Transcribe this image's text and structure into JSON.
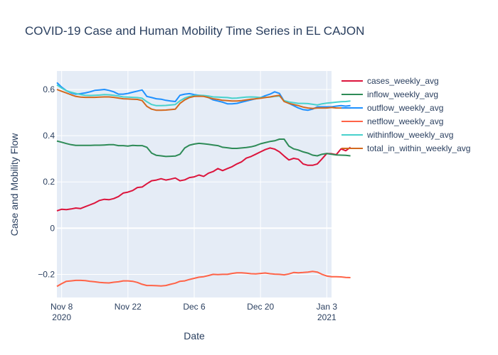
{
  "chart_data": {
    "type": "line",
    "title": "COVID-19 Case and Human Mobility Time Series in EL CAJON",
    "xlabel": "Date",
    "ylabel": "Case and Mobility Flow",
    "x_start": "2020-11-07",
    "xlim": [
      "2020-11-07",
      "2021-01-04"
    ],
    "ylim": [
      -0.3,
      0.68
    ],
    "x_ticks": [
      {
        "date": "2020-11-08",
        "label": "Nov 8",
        "sublabel": "2020"
      },
      {
        "date": "2020-11-22",
        "label": "Nov 22",
        "sublabel": ""
      },
      {
        "date": "2020-12-06",
        "label": "Dec 6",
        "sublabel": ""
      },
      {
        "date": "2020-12-20",
        "label": "Dec 20",
        "sublabel": ""
      },
      {
        "date": "2021-01-03",
        "label": "Jan 3",
        "sublabel": "2021"
      }
    ],
    "y_ticks": [
      {
        "value": -0.2,
        "label": "−0.2"
      },
      {
        "value": 0,
        "label": "0"
      },
      {
        "value": 0.2,
        "label": "0.2"
      },
      {
        "value": 0.4,
        "label": "0.4"
      },
      {
        "value": 0.6,
        "label": "0.6"
      }
    ],
    "grid": true,
    "legend_position": "right",
    "series": [
      {
        "name": "cases_weekly_avg",
        "color": "#dc143c",
        "values": [
          0.075,
          0.082,
          0.08,
          0.083,
          0.087,
          0.085,
          0.093,
          0.101,
          0.109,
          0.12,
          0.125,
          0.123,
          0.128,
          0.137,
          0.152,
          0.156,
          0.163,
          0.176,
          0.178,
          0.192,
          0.205,
          0.208,
          0.214,
          0.208,
          0.212,
          0.217,
          0.205,
          0.209,
          0.219,
          0.222,
          0.23,
          0.224,
          0.238,
          0.245,
          0.258,
          0.249,
          0.258,
          0.266,
          0.278,
          0.287,
          0.303,
          0.31,
          0.32,
          0.33,
          0.34,
          0.347,
          0.342,
          0.33,
          0.312,
          0.295,
          0.302,
          0.298,
          0.278,
          0.272,
          0.272,
          0.278,
          0.3,
          0.323,
          0.322,
          0.318,
          0.343,
          0.335,
          0.35
        ]
      },
      {
        "name": "inflow_weekly_avg",
        "color": "#2e8b57",
        "values": [
          0.377,
          0.372,
          0.366,
          0.361,
          0.358,
          0.358,
          0.358,
          0.358,
          0.359,
          0.359,
          0.36,
          0.361,
          0.361,
          0.357,
          0.357,
          0.355,
          0.358,
          0.357,
          0.357,
          0.35,
          0.325,
          0.315,
          0.313,
          0.31,
          0.311,
          0.312,
          0.32,
          0.347,
          0.359,
          0.364,
          0.367,
          0.365,
          0.363,
          0.36,
          0.357,
          0.35,
          0.348,
          0.345,
          0.345,
          0.347,
          0.349,
          0.352,
          0.357,
          0.365,
          0.37,
          0.375,
          0.378,
          0.385,
          0.385,
          0.355,
          0.343,
          0.338,
          0.33,
          0.325,
          0.316,
          0.313,
          0.32,
          0.323,
          0.32,
          0.317,
          0.316,
          0.315,
          0.313
        ]
      },
      {
        "name": "outflow_weekly_avg",
        "color": "#1e90ff",
        "values": [
          0.63,
          0.61,
          0.595,
          0.585,
          0.58,
          0.582,
          0.585,
          0.59,
          0.596,
          0.598,
          0.6,
          0.596,
          0.59,
          0.58,
          0.58,
          0.583,
          0.588,
          0.593,
          0.598,
          0.57,
          0.565,
          0.56,
          0.558,
          0.553,
          0.55,
          0.548,
          0.575,
          0.58,
          0.582,
          0.578,
          0.575,
          0.573,
          0.565,
          0.555,
          0.55,
          0.545,
          0.538,
          0.538,
          0.54,
          0.545,
          0.55,
          0.555,
          0.56,
          0.565,
          0.573,
          0.58,
          0.59,
          0.583,
          0.55,
          0.54,
          0.53,
          0.52,
          0.513,
          0.51,
          0.515,
          0.525,
          0.525,
          0.525,
          0.525,
          0.528,
          0.53,
          0.528,
          0.53
        ]
      },
      {
        "name": "netflow_weekly_avg",
        "color": "#ff6347",
        "values": [
          -0.252,
          -0.24,
          -0.23,
          -0.228,
          -0.226,
          -0.226,
          -0.227,
          -0.23,
          -0.232,
          -0.235,
          -0.236,
          -0.237,
          -0.234,
          -0.232,
          -0.228,
          -0.228,
          -0.23,
          -0.235,
          -0.243,
          -0.248,
          -0.248,
          -0.249,
          -0.25,
          -0.248,
          -0.243,
          -0.238,
          -0.23,
          -0.228,
          -0.222,
          -0.217,
          -0.212,
          -0.21,
          -0.205,
          -0.2,
          -0.201,
          -0.2,
          -0.2,
          -0.196,
          -0.193,
          -0.193,
          -0.195,
          -0.197,
          -0.198,
          -0.196,
          -0.194,
          -0.197,
          -0.199,
          -0.2,
          -0.202,
          -0.198,
          -0.192,
          -0.193,
          -0.192,
          -0.19,
          -0.187,
          -0.19,
          -0.2,
          -0.207,
          -0.21,
          -0.21,
          -0.211,
          -0.213,
          -0.214
        ]
      },
      {
        "name": "withinflow_weekly_avg",
        "color": "#48d1cc",
        "values": [
          0.62,
          0.606,
          0.595,
          0.588,
          0.583,
          0.578,
          0.575,
          0.574,
          0.575,
          0.576,
          0.578,
          0.577,
          0.575,
          0.572,
          0.568,
          0.567,
          0.566,
          0.565,
          0.562,
          0.547,
          0.535,
          0.53,
          0.53,
          0.531,
          0.533,
          0.535,
          0.551,
          0.563,
          0.57,
          0.574,
          0.575,
          0.574,
          0.572,
          0.568,
          0.567,
          0.566,
          0.565,
          0.562,
          0.563,
          0.565,
          0.567,
          0.568,
          0.567,
          0.565,
          0.566,
          0.567,
          0.57,
          0.572,
          0.552,
          0.546,
          0.543,
          0.54,
          0.54,
          0.539,
          0.536,
          0.533,
          0.538,
          0.541,
          0.543,
          0.545,
          0.547,
          0.548,
          0.55
        ]
      },
      {
        "name": "total_in_within_weekly_avg",
        "color": "#d2691e",
        "values": [
          0.6,
          0.592,
          0.585,
          0.577,
          0.57,
          0.567,
          0.566,
          0.566,
          0.566,
          0.567,
          0.568,
          0.568,
          0.566,
          0.563,
          0.56,
          0.559,
          0.558,
          0.557,
          0.552,
          0.527,
          0.515,
          0.51,
          0.51,
          0.511,
          0.513,
          0.515,
          0.54,
          0.555,
          0.565,
          0.57,
          0.571,
          0.57,
          0.565,
          0.56,
          0.557,
          0.553,
          0.552,
          0.55,
          0.55,
          0.552,
          0.555,
          0.558,
          0.56,
          0.562,
          0.565,
          0.568,
          0.572,
          0.575,
          0.548,
          0.54,
          0.535,
          0.53,
          0.524,
          0.52,
          0.518,
          0.52,
          0.52,
          0.52,
          0.522,
          0.52,
          0.52,
          0.52,
          0.52
        ]
      }
    ]
  }
}
